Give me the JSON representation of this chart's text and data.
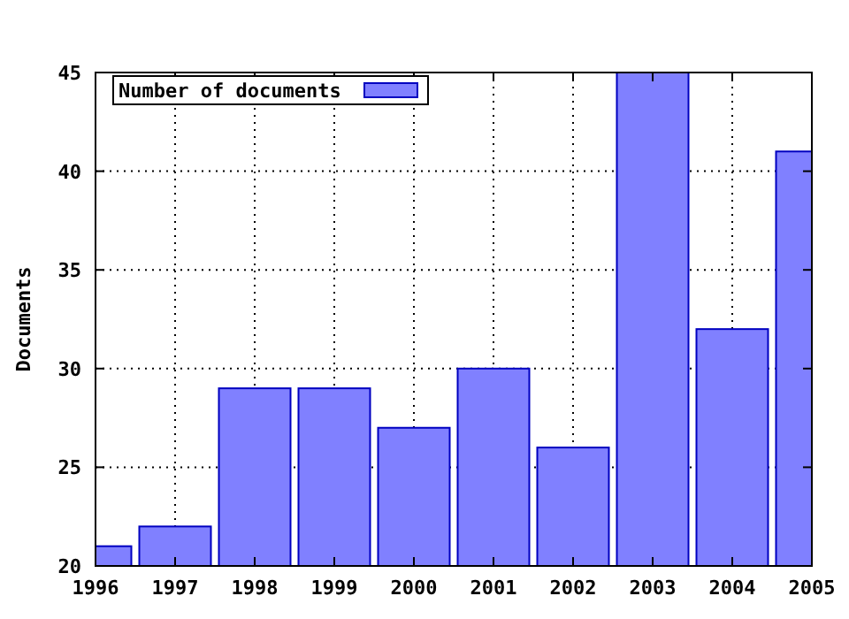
{
  "chart_data": {
    "type": "bar",
    "ylabel": "Documents",
    "x": [
      1996,
      1997,
      1998,
      1999,
      2000,
      2001,
      2002,
      2003,
      2004,
      2005
    ],
    "series": [
      {
        "name": "Number of documents",
        "color": "#8080ff",
        "values": [
          21,
          22,
          29,
          29,
          27,
          30,
          26,
          45,
          32,
          41
        ]
      }
    ],
    "xlim": [
      1996,
      2005
    ],
    "xticks": [
      1996,
      1997,
      1998,
      1999,
      2000,
      2001,
      2002,
      2003,
      2004,
      2005
    ],
    "ylim": [
      20,
      45
    ],
    "yticks": [
      20,
      25,
      30,
      35,
      40,
      45
    ],
    "grid": true,
    "legend": "top left"
  }
}
